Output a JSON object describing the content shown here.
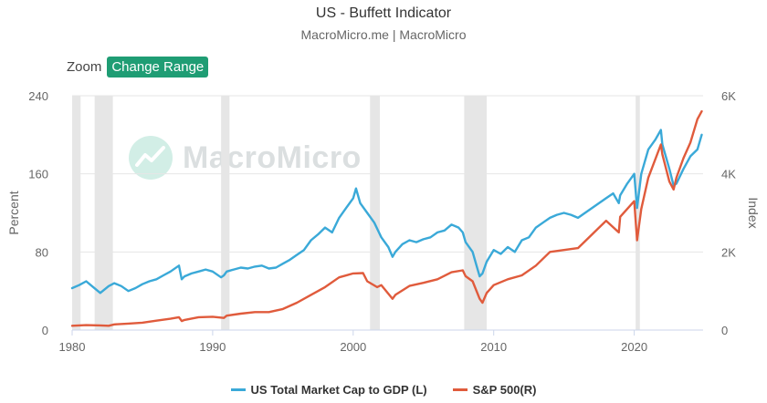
{
  "header": {
    "title": "US - Buffett Indicator",
    "subtitle": "MacroMicro.me | MacroMicro"
  },
  "controls": {
    "zoom_label": "Zoom",
    "change_range_label": "Change Range"
  },
  "watermark": {
    "text": "MacroMicro",
    "icon": "macromicro-logo-icon"
  },
  "colors": {
    "series1": "#3aa9d8",
    "series2": "#e05b3c",
    "recession": "#e6e6e6",
    "button": "#1f9d74"
  },
  "chart_data": {
    "type": "line",
    "title": "US - Buffett Indicator",
    "subtitle": "MacroMicro.me | MacroMicro",
    "xlabel": "",
    "ylabel_left": "Percent",
    "ylabel_right": "Index",
    "xlim": [
      1980,
      2024.9
    ],
    "ylim_left": [
      0,
      240
    ],
    "ylim_right": [
      0,
      6000
    ],
    "x_ticks": [
      1980,
      1990,
      2000,
      2010,
      2020
    ],
    "y_ticks_left": [
      0,
      80,
      160,
      240
    ],
    "y_ticks_right": [
      "0",
      "2K",
      "4K",
      "6K"
    ],
    "y_ticks_right_values": [
      0,
      2000,
      4000,
      6000
    ],
    "grid": true,
    "legend_position": "bottom-center",
    "recession_periods": [
      [
        1980.0,
        1980.6
      ],
      [
        1981.6,
        1982.9
      ],
      [
        1990.6,
        1991.2
      ],
      [
        2001.2,
        2001.9
      ],
      [
        2007.9,
        2009.5
      ],
      [
        2020.1,
        2020.4
      ]
    ],
    "series": [
      {
        "name": "US Total Market Cap to GDP (L)",
        "axis": "left",
        "color": "#3aa9d8",
        "x": [
          1980,
          1980.5,
          1981,
          1981.5,
          1982,
          1982.6,
          1983,
          1983.5,
          1984,
          1984.5,
          1985,
          1985.5,
          1986,
          1986.5,
          1987,
          1987.6,
          1987.8,
          1988,
          1988.5,
          1989,
          1989.5,
          1990,
          1990.6,
          1990.8,
          1991,
          1991.5,
          1992,
          1992.5,
          1993,
          1993.5,
          1994,
          1994.5,
          1995,
          1995.5,
          1996,
          1996.5,
          1997,
          1997.5,
          1998,
          1998.5,
          1999,
          1999.5,
          2000,
          2000.2,
          2000.5,
          2001,
          2001.5,
          2002,
          2002.5,
          2002.8,
          2003,
          2003.5,
          2004,
          2004.5,
          2005,
          2005.5,
          2006,
          2006.5,
          2007,
          2007.5,
          2007.8,
          2008,
          2008.5,
          2008.8,
          2009,
          2009.2,
          2009.5,
          2010,
          2010.5,
          2011,
          2011.5,
          2012,
          2012.5,
          2013,
          2013.5,
          2014,
          2014.5,
          2015,
          2015.5,
          2016,
          2016.5,
          2017,
          2017.5,
          2018,
          2018.5,
          2018.9,
          2019,
          2019.5,
          2020,
          2020.2,
          2020.5,
          2021,
          2021.5,
          2021.9,
          2022,
          2022.5,
          2022.8,
          2023,
          2023.5,
          2024,
          2024.5,
          2024.8
        ],
        "values": [
          43,
          46,
          50,
          44,
          38,
          45,
          48,
          45,
          40,
          43,
          47,
          50,
          52,
          56,
          60,
          66,
          52,
          55,
          58,
          60,
          62,
          60,
          54,
          56,
          60,
          62,
          64,
          63,
          65,
          66,
          63,
          64,
          68,
          72,
          77,
          82,
          92,
          98,
          105,
          100,
          115,
          125,
          135,
          145,
          130,
          120,
          110,
          95,
          85,
          75,
          80,
          88,
          92,
          90,
          93,
          95,
          100,
          102,
          108,
          105,
          100,
          90,
          80,
          65,
          55,
          58,
          70,
          82,
          78,
          85,
          80,
          92,
          95,
          105,
          110,
          115,
          118,
          120,
          118,
          115,
          120,
          125,
          130,
          135,
          140,
          130,
          138,
          150,
          160,
          125,
          160,
          185,
          195,
          205,
          190,
          165,
          148,
          150,
          165,
          178,
          185,
          200
        ]
      },
      {
        "name": "S&P 500(R)",
        "axis": "right",
        "color": "#e05b3c",
        "x": [
          1980,
          1981,
          1982,
          1982.6,
          1983,
          1984,
          1985,
          1986,
          1987,
          1987.6,
          1987.8,
          1988,
          1989,
          1990,
          1990.8,
          1991,
          1992,
          1993,
          1994,
          1995,
          1996,
          1997,
          1998,
          1999,
          2000,
          2000.7,
          2001,
          2001.7,
          2002,
          2002.8,
          2003,
          2004,
          2005,
          2006,
          2007,
          2007.8,
          2008,
          2008.5,
          2009,
          2009.2,
          2009.5,
          2010,
          2011,
          2012,
          2013,
          2014,
          2015,
          2016,
          2017,
          2018,
          2018.9,
          2019,
          2020,
          2020.2,
          2020.5,
          2021,
          2021.9,
          2022,
          2022.5,
          2022.8,
          2023,
          2023.5,
          2024,
          2024.5,
          2024.8
        ],
        "values": [
          110,
          125,
          120,
          110,
          145,
          165,
          190,
          240,
          290,
          330,
          230,
          260,
          330,
          340,
          310,
          370,
          420,
          460,
          460,
          540,
          700,
          900,
          1100,
          1350,
          1450,
          1460,
          1250,
          1100,
          1150,
          800,
          900,
          1130,
          1210,
          1300,
          1480,
          1530,
          1380,
          1250,
          800,
          700,
          950,
          1150,
          1300,
          1400,
          1650,
          2000,
          2050,
          2100,
          2450,
          2800,
          2500,
          2900,
          3300,
          2300,
          3100,
          3900,
          4750,
          4500,
          3800,
          3600,
          3900,
          4400,
          4800,
          5400,
          5600
        ]
      }
    ]
  }
}
